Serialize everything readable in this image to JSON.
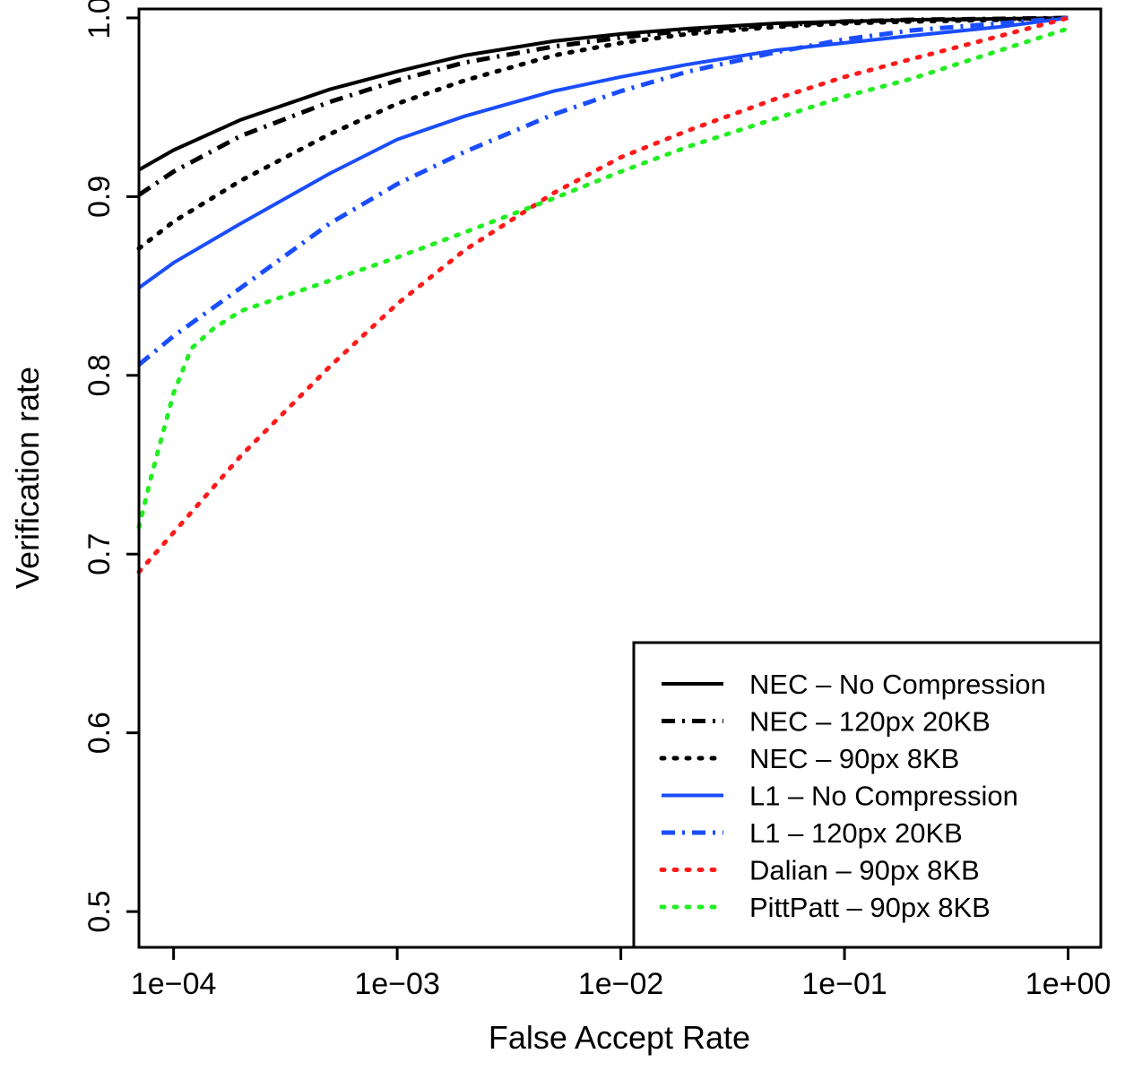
{
  "chart_data": {
    "type": "line",
    "xlabel": "False Accept Rate",
    "ylabel": "Verification rate",
    "xscale": "log",
    "xlim": [
      7e-05,
      1.4
    ],
    "ylim": [
      0.48,
      1.005
    ],
    "xticks": [
      {
        "value": 0.0001,
        "label": "1e−04"
      },
      {
        "value": 0.001,
        "label": "1e−03"
      },
      {
        "value": 0.01,
        "label": "1e−02"
      },
      {
        "value": 0.1,
        "label": "1e−01"
      },
      {
        "value": 1,
        "label": "1e+00"
      }
    ],
    "yticks": [
      {
        "value": 0.5,
        "label": "0.5"
      },
      {
        "value": 0.6,
        "label": "0.6"
      },
      {
        "value": 0.7,
        "label": "0.7"
      },
      {
        "value": 0.8,
        "label": "0.8"
      },
      {
        "value": 0.9,
        "label": "0.9"
      },
      {
        "value": 1.0,
        "label": "1.0"
      }
    ],
    "grid": false,
    "legend_position": "bottom-right",
    "series": [
      {
        "name": "NEC – No Compression",
        "color": "#000000",
        "style": "solid",
        "x": [
          7e-05,
          0.0001,
          0.0002,
          0.0005,
          0.001,
          0.002,
          0.005,
          0.01,
          0.02,
          0.05,
          0.1,
          0.2,
          0.5,
          1.0
        ],
        "y": [
          0.915,
          0.926,
          0.943,
          0.96,
          0.97,
          0.979,
          0.987,
          0.991,
          0.994,
          0.997,
          0.998,
          0.999,
          0.9995,
          1.0
        ]
      },
      {
        "name": "NEC – 120px 20KB",
        "color": "#000000",
        "style": "dashdot",
        "x": [
          7e-05,
          0.0001,
          0.0002,
          0.0005,
          0.001,
          0.002,
          0.005,
          0.01,
          0.02,
          0.05,
          0.1,
          0.2,
          0.5,
          1.0
        ],
        "y": [
          0.901,
          0.914,
          0.934,
          0.953,
          0.965,
          0.975,
          0.984,
          0.989,
          0.993,
          0.996,
          0.998,
          0.999,
          0.9995,
          1.0
        ]
      },
      {
        "name": "NEC – 90px 8KB",
        "color": "#000000",
        "style": "dotted",
        "x": [
          7e-05,
          0.0001,
          0.0002,
          0.0005,
          0.001,
          0.002,
          0.005,
          0.01,
          0.02,
          0.05,
          0.1,
          0.2,
          0.5,
          1.0
        ],
        "y": [
          0.871,
          0.886,
          0.909,
          0.935,
          0.952,
          0.965,
          0.979,
          0.986,
          0.991,
          0.995,
          0.997,
          0.998,
          0.999,
          1.0
        ]
      },
      {
        "name": "L1 – No Compression",
        "color": "#1a4dff",
        "style": "solid",
        "x": [
          7e-05,
          0.0001,
          0.0002,
          0.0005,
          0.001,
          0.002,
          0.005,
          0.01,
          0.02,
          0.05,
          0.1,
          0.2,
          0.5,
          1.0
        ],
        "y": [
          0.849,
          0.863,
          0.885,
          0.913,
          0.932,
          0.945,
          0.959,
          0.967,
          0.974,
          0.982,
          0.986,
          0.99,
          0.995,
          1.0
        ]
      },
      {
        "name": "L1 – 120px 20KB",
        "color": "#1a4dff",
        "style": "dashdot",
        "x": [
          7e-05,
          0.0001,
          0.0002,
          0.0005,
          0.001,
          0.002,
          0.005,
          0.01,
          0.02,
          0.05,
          0.1,
          0.2,
          0.5,
          1.0
        ],
        "y": [
          0.806,
          0.822,
          0.849,
          0.885,
          0.907,
          0.925,
          0.946,
          0.959,
          0.97,
          0.981,
          0.988,
          0.993,
          0.997,
          1.0
        ]
      },
      {
        "name": "Dalian – 90px 8KB",
        "color": "#ff1a1a",
        "style": "dotted",
        "x": [
          7e-05,
          0.0001,
          0.0002,
          0.0005,
          0.001,
          0.002,
          0.005,
          0.01,
          0.02,
          0.05,
          0.1,
          0.2,
          0.5,
          1.0
        ],
        "y": [
          0.69,
          0.712,
          0.755,
          0.805,
          0.84,
          0.87,
          0.902,
          0.922,
          0.937,
          0.955,
          0.967,
          0.977,
          0.99,
          1.0
        ]
      },
      {
        "name": "PittPatt – 90px 8KB",
        "color": "#22ee22",
        "style": "dotted",
        "x": [
          7e-05,
          8e-05,
          0.0001,
          0.00012,
          0.00015,
          0.0002,
          0.0005,
          0.001,
          0.002,
          0.005,
          0.01,
          0.02,
          0.05,
          0.1,
          0.2,
          0.5,
          1.0
        ],
        "y": [
          0.715,
          0.745,
          0.79,
          0.815,
          0.826,
          0.836,
          0.853,
          0.866,
          0.88,
          0.899,
          0.914,
          0.928,
          0.944,
          0.956,
          0.966,
          0.982,
          0.994
        ]
      }
    ]
  }
}
